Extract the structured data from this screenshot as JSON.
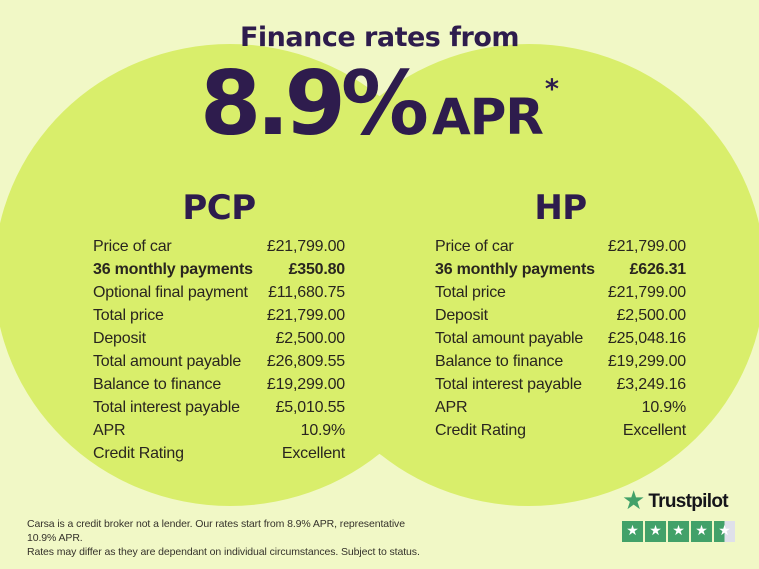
{
  "page": {
    "title": "Finance rates from"
  },
  "rate": {
    "big": "8.9%",
    "unit": "APR",
    "footnote_marker": "*"
  },
  "columns": [
    {
      "name": "PCP",
      "rows": [
        {
          "label": "Price of car",
          "value": "£21,799.00"
        },
        {
          "label": "36 monthly payments",
          "value": "£350.80",
          "bold": true
        },
        {
          "label": "Optional final payment",
          "value": "£11,680.75"
        },
        {
          "label": "Total price",
          "value": "£21,799.00"
        },
        {
          "label": "Deposit",
          "value": "£2,500.00"
        },
        {
          "label": "Total amount payable",
          "value": "£26,809.55"
        },
        {
          "label": "Balance to finance",
          "value": "£19,299.00"
        },
        {
          "label": "Total interest payable",
          "value": "£5,010.55"
        },
        {
          "label": "APR",
          "value": "10.9%"
        },
        {
          "label": "Credit Rating",
          "value": "Excellent"
        }
      ]
    },
    {
      "name": "HP",
      "rows": [
        {
          "label": "Price of car",
          "value": "£21,799.00"
        },
        {
          "label": "36 monthly payments",
          "value": "£626.31",
          "bold": true
        },
        {
          "label": "Total price",
          "value": "£21,799.00"
        },
        {
          "label": "Deposit",
          "value": "£2,500.00"
        },
        {
          "label": "Total amount payable",
          "value": "£25,048.16"
        },
        {
          "label": "Balance to finance",
          "value": "£19,299.00"
        },
        {
          "label": "Total interest payable",
          "value": "£3,249.16"
        },
        {
          "label": "APR",
          "value": "10.9%"
        },
        {
          "label": "Credit Rating",
          "value": "Excellent"
        }
      ]
    }
  ],
  "disclaimer_lines": [
    "Carsa is a credit broker not a lender. Our rates start from 8.9% APR, representative 10.9% APR.",
    "Rates may differ as they are dependant on individual circumstances. Subject to status."
  ],
  "trustpilot": {
    "brand": "Trustpilot",
    "stars": 4.5,
    "max_stars": 5
  },
  "icons": {
    "trustpilot_star": "★",
    "rating_star": "★"
  },
  "colors": {
    "bg": "#f1f8c6",
    "circle": "#d9ee6b",
    "purple": "#2e1c4d",
    "ink": "#29251f",
    "tp-green": "#42a169",
    "tp-empty": "#dfe0ea",
    "tp-text": "#15151a",
    "muted": "#35322b"
  }
}
